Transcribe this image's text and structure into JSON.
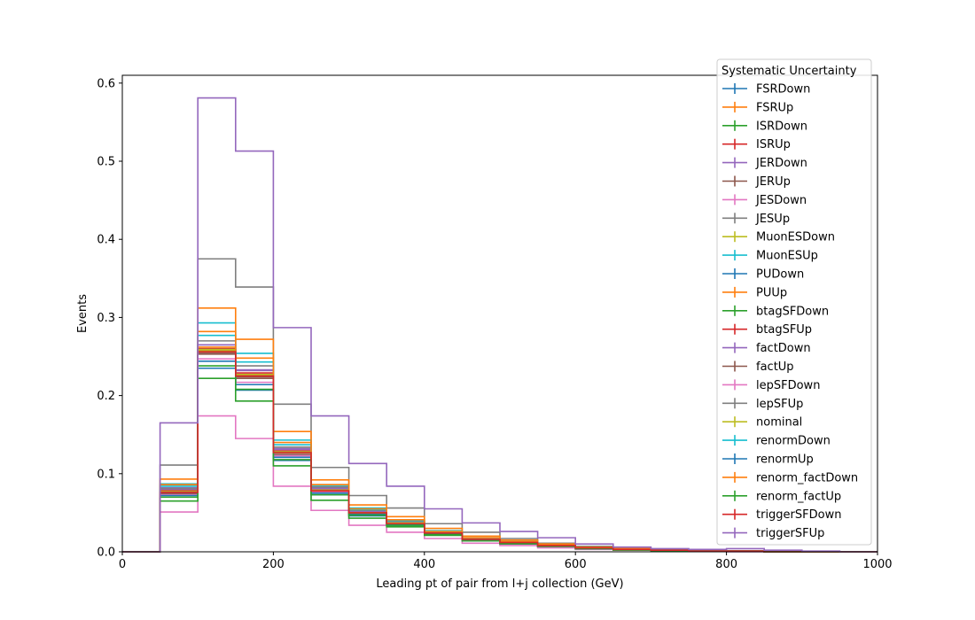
{
  "chart_data": {
    "type": "line",
    "style": "step-histogram",
    "xlabel": "Leading pt of pair from l+j collection (GeV)",
    "ylabel": "Events",
    "xlim": [
      0,
      1000
    ],
    "ylim": [
      0,
      0.61
    ],
    "xticks": [
      0,
      200,
      400,
      600,
      800,
      1000
    ],
    "yticks": [
      0.0,
      0.1,
      0.2,
      0.3,
      0.4,
      0.5,
      0.6
    ],
    "xtick_labels": [
      "0",
      "200",
      "400",
      "600",
      "800",
      "1000"
    ],
    "ytick_labels": [
      "0.0",
      "0.1",
      "0.2",
      "0.3",
      "0.4",
      "0.5",
      "0.6"
    ],
    "grid": false,
    "legend": {
      "title": "Systematic Uncertainty",
      "placement": "upper-right"
    },
    "bin_edges": [
      0,
      50,
      100,
      150,
      200,
      250,
      300,
      350,
      400,
      450,
      500,
      550,
      600,
      650,
      700,
      750,
      800,
      850,
      900,
      950,
      1000
    ],
    "series": [
      {
        "name": "FSRDown",
        "color": "#1f77b4",
        "values": [
          0,
          0.075,
          0.235,
          0.207,
          0.117,
          0.073,
          0.046,
          0.034,
          0.022,
          0.015,
          0.011,
          0.007,
          0.004,
          0.003,
          0.002,
          0.001,
          0.001,
          0,
          0,
          0
        ]
      },
      {
        "name": "FSRUp",
        "color": "#ff7f0e",
        "values": [
          0,
          0.079,
          0.262,
          0.232,
          0.131,
          0.081,
          0.052,
          0.038,
          0.025,
          0.017,
          0.012,
          0.008,
          0.005,
          0.003,
          0.002,
          0.001,
          0.001,
          0,
          0,
          0
        ]
      },
      {
        "name": "ISRDown",
        "color": "#2ca02c",
        "values": [
          0,
          0.077,
          0.258,
          0.226,
          0.128,
          0.079,
          0.05,
          0.037,
          0.024,
          0.016,
          0.012,
          0.008,
          0.005,
          0.003,
          0.002,
          0.001,
          0.001,
          0,
          0,
          0
        ]
      },
      {
        "name": "ISRUp",
        "color": "#d62728",
        "values": [
          0,
          0.078,
          0.26,
          0.229,
          0.129,
          0.08,
          0.051,
          0.037,
          0.024,
          0.016,
          0.012,
          0.008,
          0.005,
          0.003,
          0.002,
          0.001,
          0.001,
          0,
          0,
          0
        ]
      },
      {
        "name": "JERDown",
        "color": "#9467bd",
        "values": [
          0,
          0.082,
          0.265,
          0.233,
          0.132,
          0.082,
          0.052,
          0.038,
          0.025,
          0.017,
          0.012,
          0.008,
          0.005,
          0.003,
          0.002,
          0.001,
          0.001,
          0,
          0,
          0
        ]
      },
      {
        "name": "JERUp",
        "color": "#8c564b",
        "values": [
          0,
          0.076,
          0.255,
          0.224,
          0.126,
          0.078,
          0.05,
          0.036,
          0.024,
          0.016,
          0.011,
          0.008,
          0.005,
          0.003,
          0.002,
          0.001,
          0.001,
          0,
          0,
          0
        ]
      },
      {
        "name": "JESDown",
        "color": "#e377c2",
        "values": [
          0,
          0.051,
          0.174,
          0.145,
          0.084,
          0.053,
          0.034,
          0.025,
          0.017,
          0.011,
          0.008,
          0.005,
          0.003,
          0.002,
          0.001,
          0.001,
          0,
          0,
          0,
          0
        ]
      },
      {
        "name": "JESUp",
        "color": "#7f7f7f",
        "values": [
          0,
          0.111,
          0.375,
          0.339,
          0.189,
          0.108,
          0.072,
          0.056,
          0.036,
          0.025,
          0.017,
          0.011,
          0.007,
          0.004,
          0.003,
          0.002,
          0.001,
          0,
          0,
          0
        ]
      },
      {
        "name": "MuonESDown",
        "color": "#bcbd22",
        "values": [
          0,
          0.077,
          0.257,
          0.226,
          0.127,
          0.079,
          0.05,
          0.037,
          0.024,
          0.016,
          0.012,
          0.008,
          0.005,
          0.003,
          0.002,
          0.001,
          0.001,
          0,
          0,
          0
        ]
      },
      {
        "name": "MuonESUp",
        "color": "#17becf",
        "values": [
          0,
          0.087,
          0.293,
          0.254,
          0.143,
          0.086,
          0.056,
          0.041,
          0.027,
          0.018,
          0.013,
          0.009,
          0.006,
          0.003,
          0.002,
          0.001,
          0.001,
          0,
          0,
          0
        ]
      },
      {
        "name": "PUDown",
        "color": "#1f77b4",
        "values": [
          0,
          0.077,
          0.259,
          0.227,
          0.128,
          0.079,
          0.05,
          0.037,
          0.024,
          0.016,
          0.012,
          0.008,
          0.005,
          0.003,
          0.002,
          0.001,
          0.001,
          0,
          0,
          0
        ]
      },
      {
        "name": "PUUp",
        "color": "#ff7f0e",
        "values": [
          0,
          0.093,
          0.312,
          0.272,
          0.154,
          0.092,
          0.06,
          0.045,
          0.03,
          0.02,
          0.015,
          0.01,
          0.006,
          0.004,
          0.002,
          0.001,
          0.001,
          0,
          0,
          0
        ]
      },
      {
        "name": "btagSFDown",
        "color": "#2ca02c",
        "values": [
          0,
          0.065,
          0.222,
          0.193,
          0.11,
          0.066,
          0.043,
          0.032,
          0.021,
          0.014,
          0.01,
          0.007,
          0.004,
          0.002,
          0.001,
          0.001,
          0.001,
          0,
          0,
          0
        ]
      },
      {
        "name": "btagSFUp",
        "color": "#d62728",
        "values": [
          0,
          0.077,
          0.259,
          0.227,
          0.128,
          0.079,
          0.05,
          0.037,
          0.024,
          0.016,
          0.012,
          0.008,
          0.005,
          0.003,
          0.002,
          0.001,
          0.001,
          0,
          0,
          0
        ]
      },
      {
        "name": "factDown",
        "color": "#9467bd",
        "values": [
          0,
          0.08,
          0.265,
          0.232,
          0.131,
          0.081,
          0.052,
          0.038,
          0.025,
          0.017,
          0.012,
          0.008,
          0.005,
          0.003,
          0.002,
          0.001,
          0.001,
          0,
          0,
          0
        ]
      },
      {
        "name": "factUp",
        "color": "#8c564b",
        "values": [
          0,
          0.074,
          0.253,
          0.222,
          0.124,
          0.077,
          0.049,
          0.036,
          0.023,
          0.016,
          0.011,
          0.007,
          0.005,
          0.003,
          0.002,
          0.001,
          0.001,
          0,
          0,
          0
        ]
      },
      {
        "name": "lepSFDown",
        "color": "#e377c2",
        "values": [
          0,
          0.073,
          0.247,
          0.217,
          0.123,
          0.076,
          0.048,
          0.035,
          0.023,
          0.015,
          0.011,
          0.007,
          0.004,
          0.003,
          0.002,
          0.001,
          0.001,
          0,
          0,
          0
        ]
      },
      {
        "name": "lepSFUp",
        "color": "#7f7f7f",
        "values": [
          0,
          0.081,
          0.27,
          0.238,
          0.134,
          0.083,
          0.053,
          0.039,
          0.025,
          0.017,
          0.012,
          0.008,
          0.005,
          0.003,
          0.002,
          0.001,
          0.001,
          0,
          0,
          0
        ]
      },
      {
        "name": "nominal",
        "color": "#bcbd22",
        "values": [
          0,
          0.077,
          0.259,
          0.227,
          0.128,
          0.079,
          0.05,
          0.037,
          0.024,
          0.016,
          0.012,
          0.008,
          0.005,
          0.003,
          0.002,
          0.001,
          0.001,
          0,
          0,
          0
        ]
      },
      {
        "name": "renormDown",
        "color": "#17becf",
        "values": [
          0,
          0.084,
          0.277,
          0.243,
          0.137,
          0.085,
          0.054,
          0.04,
          0.026,
          0.017,
          0.013,
          0.008,
          0.005,
          0.003,
          0.002,
          0.001,
          0.001,
          0,
          0,
          0
        ]
      },
      {
        "name": "renormUp",
        "color": "#1f77b4",
        "values": [
          0,
          0.072,
          0.244,
          0.214,
          0.121,
          0.075,
          0.048,
          0.035,
          0.023,
          0.015,
          0.011,
          0.007,
          0.004,
          0.003,
          0.002,
          0.001,
          0.001,
          0,
          0,
          0
        ]
      },
      {
        "name": "renorm_factDown",
        "color": "#ff7f0e",
        "values": [
          0,
          0.086,
          0.282,
          0.248,
          0.14,
          0.086,
          0.055,
          0.041,
          0.026,
          0.018,
          0.013,
          0.009,
          0.005,
          0.003,
          0.002,
          0.001,
          0.001,
          0,
          0,
          0
        ]
      },
      {
        "name": "renorm_factUp",
        "color": "#2ca02c",
        "values": [
          0,
          0.07,
          0.238,
          0.208,
          0.118,
          0.073,
          0.047,
          0.034,
          0.022,
          0.015,
          0.011,
          0.007,
          0.004,
          0.003,
          0.002,
          0.001,
          0.001,
          0,
          0,
          0
        ]
      },
      {
        "name": "triggerSFDown",
        "color": "#d62728",
        "values": [
          0,
          0.076,
          0.256,
          0.225,
          0.127,
          0.078,
          0.05,
          0.036,
          0.024,
          0.016,
          0.012,
          0.008,
          0.005,
          0.003,
          0.002,
          0.001,
          0.001,
          0,
          0,
          0
        ]
      },
      {
        "name": "triggerSFUp",
        "color": "#9467bd",
        "values": [
          0,
          0.165,
          0.581,
          0.513,
          0.287,
          0.174,
          0.113,
          0.084,
          0.055,
          0.037,
          0.026,
          0.018,
          0.01,
          0.006,
          0.004,
          0.003,
          0.004,
          0.002,
          0.001,
          0
        ]
      }
    ]
  }
}
